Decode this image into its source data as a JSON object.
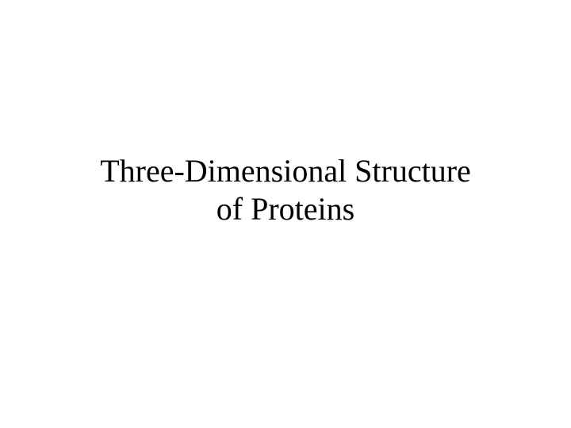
{
  "slide": {
    "title_line1": "Three-Dimensional Structure",
    "title_line2": "of Proteins",
    "background_color": "#ffffff",
    "text_color": "#000000",
    "font_family": "Times New Roman",
    "title_fontsize": 40
  }
}
